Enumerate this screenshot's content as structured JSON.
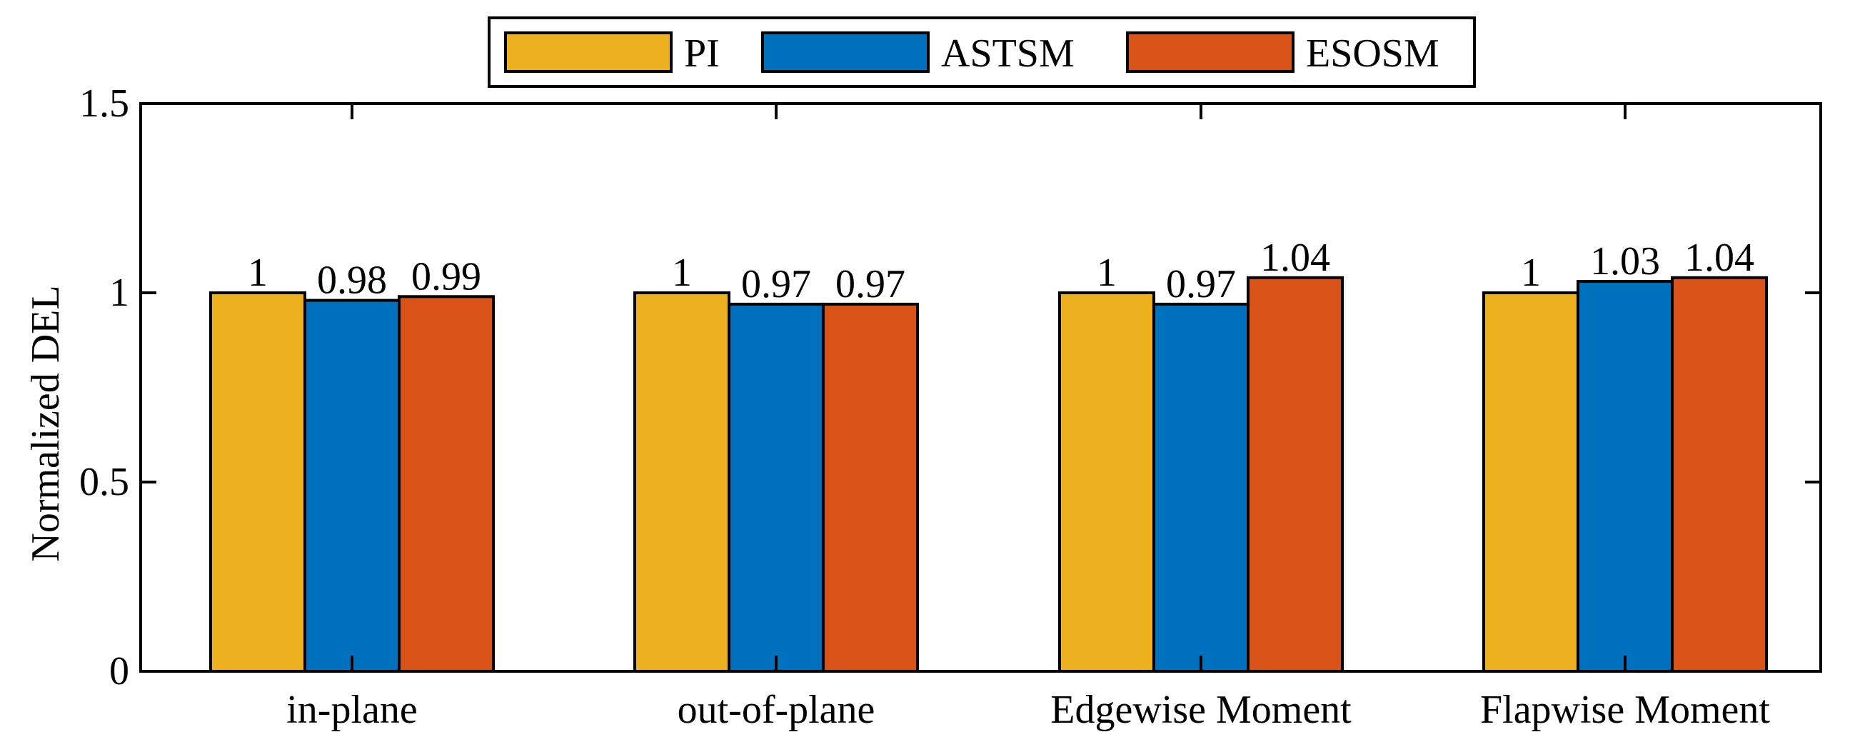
{
  "chart_data": {
    "type": "bar",
    "title": "",
    "xlabel": "",
    "ylabel": "Normalized DEL",
    "ylim": [
      0,
      1.5
    ],
    "yticks": [
      0,
      0.5,
      1,
      1.5
    ],
    "ytick_labels": [
      "0",
      "0.5",
      "1",
      "1.5"
    ],
    "categories": [
      "in-plane",
      "out-of-plane",
      "Edgewise Moment",
      "Flapwise Moment"
    ],
    "series": [
      {
        "name": "PI",
        "color": "#EDB120",
        "values": [
          1,
          1,
          1,
          1
        ],
        "labels": [
          "1",
          "1",
          "1",
          "1"
        ]
      },
      {
        "name": "ASTSM",
        "color": "#0072BD",
        "values": [
          0.98,
          0.97,
          0.97,
          1.03
        ],
        "labels": [
          "0.98",
          "0.97",
          "0.97",
          "1.03"
        ]
      },
      {
        "name": "ESOSM",
        "color": "#D95319",
        "values": [
          0.99,
          0.97,
          1.04,
          1.04
        ],
        "labels": [
          "0.99",
          "0.97",
          "1.04",
          "1.04"
        ]
      }
    ],
    "legend_position": "top-center",
    "grid": false
  }
}
